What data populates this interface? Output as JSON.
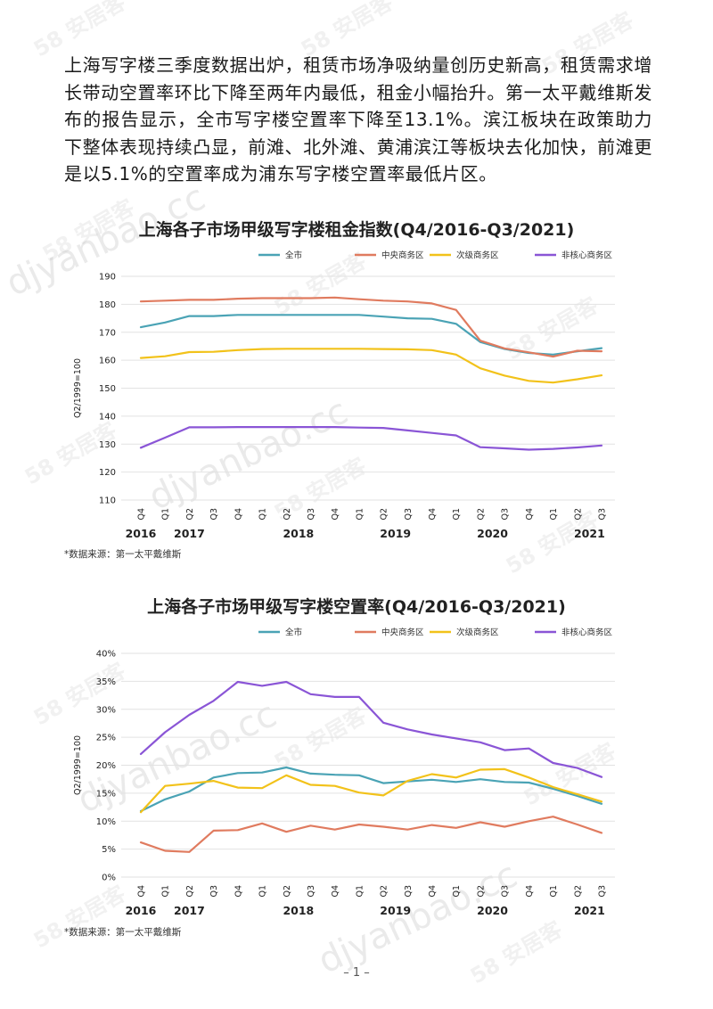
{
  "paragraph": "上海写字楼三季度数据出炉，租赁市场净吸纳量创历史新高，租赁需求增长带动空置率环比下降至两年内最低，租金小幅抬升。第一太平戴维斯发布的报告显示，全市写字楼空置率下降至13.1%。滨江板块在政策助力下整体表现持续凸显，前滩、北外滩、黄浦滨江等板块去化加快，前滩更是以5.1%的空置率成为浦东写字楼空置率最低片区。",
  "watermark": {
    "brand": "58 安居客",
    "site": "djyanbao.cc"
  },
  "page_number": "– 1 –",
  "charts": [
    {
      "source": "*数据来源：第一太平戴维斯",
      "chart_data": {
        "type": "line",
        "title": "上海各子市场甲级写字楼租金指数(Q4/2016-Q3/2021)",
        "ylabel": "Q2/1999=100",
        "xlabel": "",
        "ylim": [
          110,
          190
        ],
        "yticks": [
          "190",
          "180",
          "170",
          "160",
          "150",
          "140",
          "130",
          "120",
          "110"
        ],
        "categories": [
          "Q4",
          "Q1",
          "Q2",
          "Q3",
          "Q4",
          "Q1",
          "Q2",
          "Q3",
          "Q4",
          "Q1",
          "Q2",
          "Q3",
          "Q4",
          "Q1",
          "Q2",
          "Q3",
          "Q4",
          "Q1",
          "Q2",
          "Q3"
        ],
        "years": [
          {
            "label": "2016",
            "index": 0
          },
          {
            "label": "2017",
            "index": 2
          },
          {
            "label": "2018",
            "index": 6.5
          },
          {
            "label": "2019",
            "index": 10.5
          },
          {
            "label": "2020",
            "index": 14.5
          },
          {
            "label": "2021",
            "index": 18.5
          }
        ],
        "grid": true,
        "legend": "top-right",
        "series": [
          {
            "name": "全市",
            "color": "#4aa3b5",
            "values": [
              171.8,
              173.5,
              175.8,
              175.8,
              176.2,
              176.2,
              176.2,
              176.2,
              176.2,
              176.2,
              175.6,
              175.0,
              174.8,
              173.0,
              166.5,
              164.0,
              162.6,
              162.0,
              163.2,
              164.3
            ]
          },
          {
            "name": "中央商务区",
            "color": "#e07b5f",
            "values": [
              181.0,
              181.3,
              181.6,
              181.6,
              182.0,
              182.2,
              182.2,
              182.2,
              182.4,
              181.8,
              181.3,
              181.0,
              180.3,
              178.0,
              167.0,
              164.2,
              162.8,
              161.3,
              163.4,
              163.2
            ]
          },
          {
            "name": "次级商务区",
            "color": "#f2c21a",
            "values": [
              160.8,
              161.4,
              162.9,
              163.0,
              163.6,
              164.0,
              164.1,
              164.1,
              164.1,
              164.1,
              164.0,
              163.9,
              163.6,
              162.0,
              157.1,
              154.5,
              152.6,
              152.0,
              153.2,
              154.6
            ]
          },
          {
            "name": "非核心商务区",
            "color": "#8a55d6",
            "values": [
              128.7,
              132.3,
              136.0,
              136.0,
              136.1,
              136.1,
              136.1,
              136.1,
              136.1,
              135.9,
              135.8,
              134.9,
              134.0,
              133.1,
              128.9,
              128.5,
              128.0,
              128.3,
              128.8,
              129.5
            ]
          }
        ]
      }
    },
    {
      "source": "*数据来源：第一太平戴维斯",
      "chart_data": {
        "type": "line",
        "title": "上海各子市场甲级写字楼空置率(Q4/2016-Q3/2021)",
        "ylabel": "Q2/1999=100",
        "xlabel": "",
        "ylim": [
          0,
          40
        ],
        "yticks": [
          "40%",
          "35%",
          "30%",
          "25%",
          "20%",
          "15%",
          "10%",
          "5%",
          "0%"
        ],
        "categories": [
          "Q4",
          "Q1",
          "Q2",
          "Q3",
          "Q4",
          "Q1",
          "Q2",
          "Q3",
          "Q4",
          "Q1",
          "Q2",
          "Q3",
          "Q4",
          "Q1",
          "Q2",
          "Q3",
          "Q4",
          "Q1",
          "Q2",
          "Q3"
        ],
        "years": [
          {
            "label": "2016",
            "index": 0
          },
          {
            "label": "2017",
            "index": 2
          },
          {
            "label": "2018",
            "index": 6.5
          },
          {
            "label": "2019",
            "index": 10.5
          },
          {
            "label": "2020",
            "index": 14.5
          },
          {
            "label": "2021",
            "index": 18.5
          }
        ],
        "grid": true,
        "legend": "top-right",
        "series": [
          {
            "name": "全市",
            "color": "#4aa3b5",
            "values": [
              11.8,
              13.9,
              15.3,
              17.8,
              18.6,
              18.7,
              19.6,
              18.5,
              18.3,
              18.2,
              16.8,
              17.1,
              17.4,
              17.0,
              17.5,
              17.0,
              16.9,
              15.8,
              14.5,
              13.1
            ]
          },
          {
            "name": "中央商务区",
            "color": "#e07b5f",
            "values": [
              6.2,
              4.7,
              4.5,
              8.3,
              8.4,
              9.6,
              8.1,
              9.2,
              8.5,
              9.4,
              9.0,
              8.5,
              9.3,
              8.8,
              9.8,
              9.0,
              10.0,
              10.8,
              9.4,
              7.9
            ]
          },
          {
            "name": "次级商务区",
            "color": "#f2c21a",
            "values": [
              11.6,
              16.3,
              16.7,
              17.2,
              16.0,
              15.9,
              18.2,
              16.5,
              16.3,
              15.1,
              14.6,
              17.2,
              18.4,
              17.8,
              19.2,
              19.3,
              17.8,
              16.1,
              14.8,
              13.5
            ]
          },
          {
            "name": "非核心商务区",
            "color": "#8a55d6",
            "values": [
              22.0,
              25.9,
              29.0,
              31.5,
              34.9,
              34.2,
              34.9,
              32.7,
              32.2,
              32.2,
              27.6,
              26.4,
              25.5,
              24.8,
              24.1,
              22.7,
              23.0,
              20.4,
              19.5,
              17.9
            ]
          }
        ]
      }
    }
  ]
}
